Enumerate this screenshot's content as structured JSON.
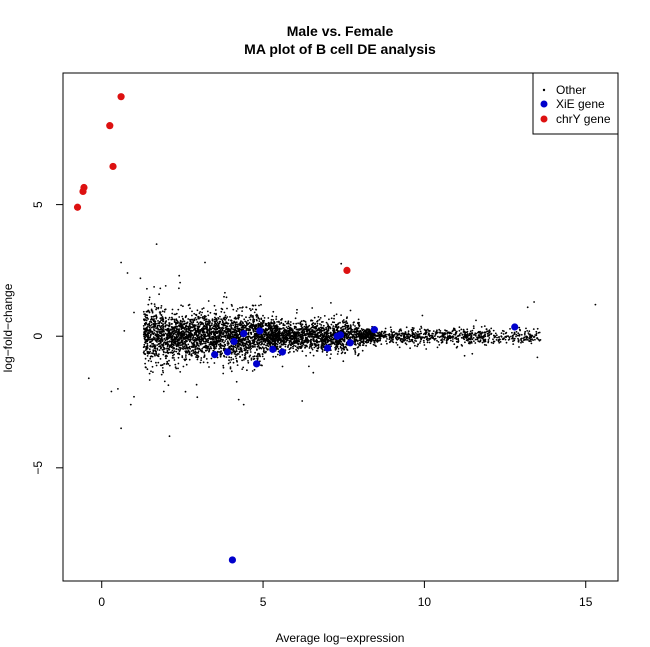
{
  "chart_data": {
    "type": "scatter",
    "title": "Male vs. Female",
    "subtitle": "MA plot of B cell DE analysis",
    "xlabel": "Average log−expression",
    "ylabel": "log−fold−change",
    "xlim": [
      -1.2,
      16.0
    ],
    "ylim": [
      -9.3,
      10.0
    ],
    "x_ticks": [
      0,
      5,
      10,
      15
    ],
    "y_ticks": [
      -5,
      0,
      5
    ],
    "x_tick_labels": [
      "0",
      "5",
      "10",
      "15"
    ],
    "y_tick_labels": [
      "−5",
      "0",
      "5"
    ],
    "grid": false,
    "legend_position": "top-right",
    "legend_entries": [
      {
        "label": "Other",
        "color": "#000000",
        "marker": "small-dot"
      },
      {
        "label": "XiE gene",
        "color": "#0000cc",
        "marker": "circle"
      },
      {
        "label": "chrY gene",
        "color": "#dd1111",
        "marker": "circle"
      }
    ],
    "series": [
      {
        "name": "chrY gene",
        "color": "#dd1111",
        "points": [
          [
            0.6,
            9.1
          ],
          [
            0.25,
            8.0
          ],
          [
            -0.55,
            5.65
          ],
          [
            -0.58,
            5.5
          ],
          [
            0.35,
            6.45
          ],
          [
            -0.75,
            4.9
          ],
          [
            7.6,
            2.5
          ]
        ]
      },
      {
        "name": "XiE gene",
        "color": "#0000cc",
        "points": [
          [
            4.4,
            0.1
          ],
          [
            4.9,
            0.2
          ],
          [
            4.1,
            -0.2
          ],
          [
            3.5,
            -0.7
          ],
          [
            3.9,
            -0.6
          ],
          [
            4.8,
            -1.05
          ],
          [
            5.3,
            -0.5
          ],
          [
            5.6,
            -0.6
          ],
          [
            7.0,
            -0.45
          ],
          [
            7.3,
            0.0
          ],
          [
            7.4,
            0.05
          ],
          [
            7.7,
            -0.25
          ],
          [
            8.45,
            0.25
          ],
          [
            12.8,
            0.35
          ],
          [
            4.05,
            -8.5
          ]
        ]
      },
      {
        "name": "Other",
        "color": "#000000",
        "distribution": "dense cloud centred on log-fold-change 0, spread widest near average log-expression 1.5-5 (roughly ±1.5) and narrowing towards 13-15"
      }
    ]
  }
}
